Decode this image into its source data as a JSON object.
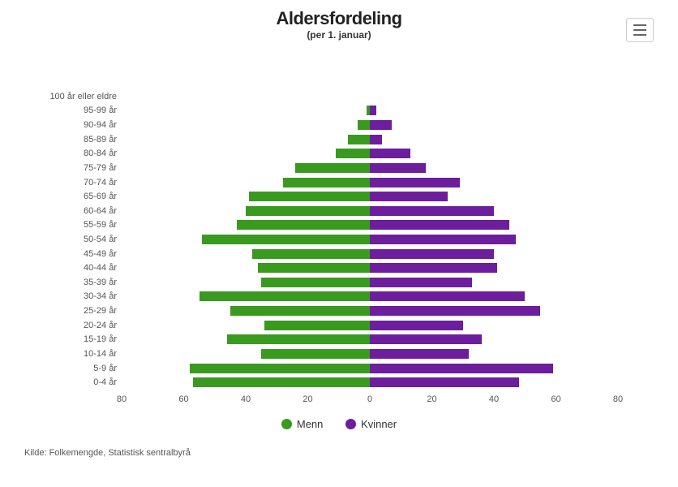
{
  "title": "Aldersfordeling",
  "subtitle": "(per 1. januar)",
  "source": "Kilde: Folkemengde, Statistisk sentralbyrå",
  "menu_icon_name": "menu-icon",
  "chart": {
    "type": "diverging-bar",
    "series_left": {
      "label": "Menn",
      "color": "#3a9a1f"
    },
    "series_right": {
      "label": "Kvinner",
      "color": "#6d1e9c"
    },
    "background_color": "#ffffff",
    "axis_font_size": 11,
    "axis_color": "#555555",
    "title_fontsize": 22,
    "subtitle_fontsize": 12,
    "x_axis": {
      "min": -80,
      "max": 80,
      "tick_step": 20
    },
    "x_ticks": [
      {
        "label": "80",
        "value": -80
      },
      {
        "label": "60",
        "value": -60
      },
      {
        "label": "40",
        "value": -40
      },
      {
        "label": "20",
        "value": -20
      },
      {
        "label": "0",
        "value": 0
      },
      {
        "label": "20",
        "value": 20
      },
      {
        "label": "40",
        "value": 40
      },
      {
        "label": "60",
        "value": 60
      },
      {
        "label": "80",
        "value": 80
      }
    ],
    "categories": [
      {
        "label": "100 år eller eldre",
        "men": 0,
        "kvinner": 0
      },
      {
        "label": "95-99 år",
        "men": 1,
        "kvinner": 2
      },
      {
        "label": "90-94 år",
        "men": 4,
        "kvinner": 7
      },
      {
        "label": "85-89 år",
        "men": 7,
        "kvinner": 4
      },
      {
        "label": "80-84 år",
        "men": 11,
        "kvinner": 13
      },
      {
        "label": "75-79 år",
        "men": 24,
        "kvinner": 18
      },
      {
        "label": "70-74 år",
        "men": 28,
        "kvinner": 29
      },
      {
        "label": "65-69 år",
        "men": 39,
        "kvinner": 25
      },
      {
        "label": "60-64 år",
        "men": 40,
        "kvinner": 40
      },
      {
        "label": "55-59 år",
        "men": 43,
        "kvinner": 45
      },
      {
        "label": "50-54 år",
        "men": 54,
        "kvinner": 47
      },
      {
        "label": "45-49 år",
        "men": 38,
        "kvinner": 40
      },
      {
        "label": "40-44 år",
        "men": 36,
        "kvinner": 41
      },
      {
        "label": "35-39 år",
        "men": 35,
        "kvinner": 33
      },
      {
        "label": "30-34 år",
        "men": 55,
        "kvinner": 50
      },
      {
        "label": "25-29 år",
        "men": 45,
        "kvinner": 55
      },
      {
        "label": "20-24 år",
        "men": 34,
        "kvinner": 30
      },
      {
        "label": "15-19 år",
        "men": 46,
        "kvinner": 36
      },
      {
        "label": "10-14 år",
        "men": 35,
        "kvinner": 32
      },
      {
        "label": "5-9 år",
        "men": 58,
        "kvinner": 59
      },
      {
        "label": "0-4 år",
        "men": 57,
        "kvinner": 48
      }
    ]
  }
}
